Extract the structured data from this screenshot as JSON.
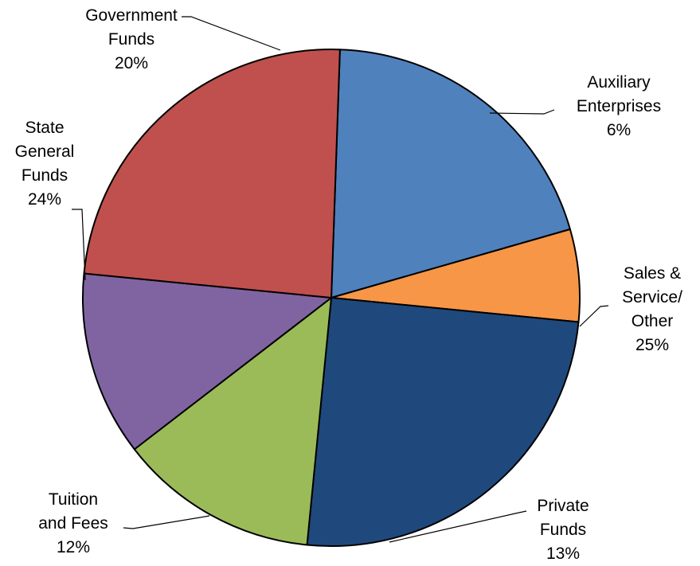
{
  "chart_data": {
    "type": "pie",
    "slices": [
      {
        "lines": [
          "Government",
          "Funds"
        ],
        "pct": "20%",
        "value": 20,
        "color": "#4f81bd"
      },
      {
        "lines": [
          "Auxiliary",
          "Enterprises"
        ],
        "pct": "6%",
        "value": 6,
        "color": "#f79646"
      },
      {
        "lines": [
          "Sales &",
          "Service/",
          "Other"
        ],
        "pct": "25%",
        "value": 25,
        "color": "#1f497d"
      },
      {
        "lines": [
          "Private",
          "Funds"
        ],
        "pct": "13%",
        "value": 13,
        "color": "#9bbb59"
      },
      {
        "lines": [
          "Tuition",
          "and Fees"
        ],
        "pct": "12%",
        "value": 12,
        "color": "#8064a2"
      },
      {
        "lines": [
          "State",
          "General",
          "Funds"
        ],
        "pct": "24%",
        "value": 24,
        "color": "#c0504d"
      }
    ]
  }
}
